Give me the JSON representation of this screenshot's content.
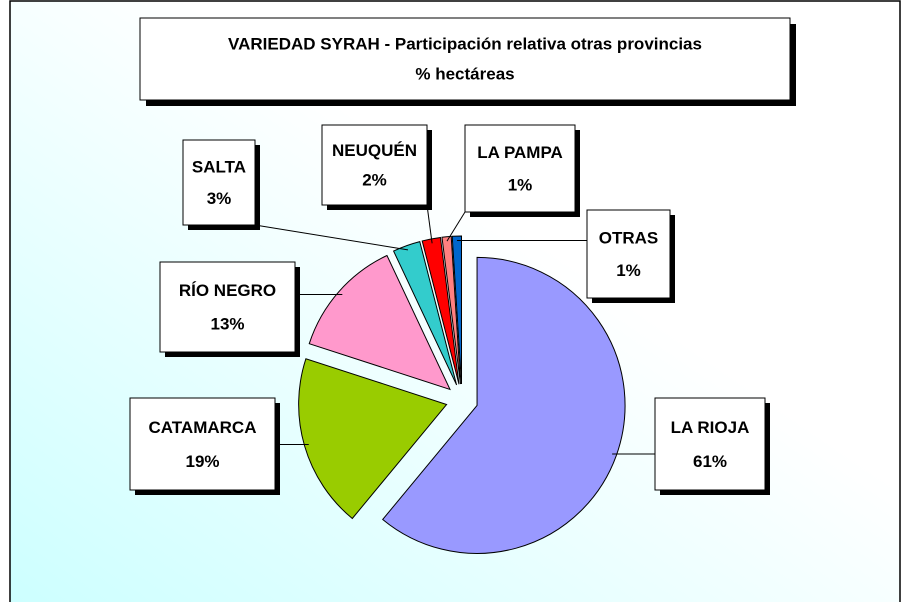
{
  "chart_data": {
    "type": "pie",
    "title": "VARIEDAD SYRAH - Participación relativa otras  provincias",
    "subtitle": "% hectáreas",
    "categories": [
      "LA RIOJA",
      "CATAMARCA",
      "RÍO NEGRO",
      "SALTA",
      "NEUQUÉN",
      "LA PAMPA",
      "OTRAS"
    ],
    "values": [
      61,
      19,
      13,
      3,
      2,
      1,
      1
    ],
    "value_labels": [
      "61%",
      "19%",
      "13%",
      "3%",
      "2%",
      "1%",
      "1%"
    ],
    "colors": [
      "#9999ff",
      "#99cc00",
      "#ff99cc",
      "#33cccc",
      "#ff0000",
      "#ff8080",
      "#0066cc"
    ]
  }
}
